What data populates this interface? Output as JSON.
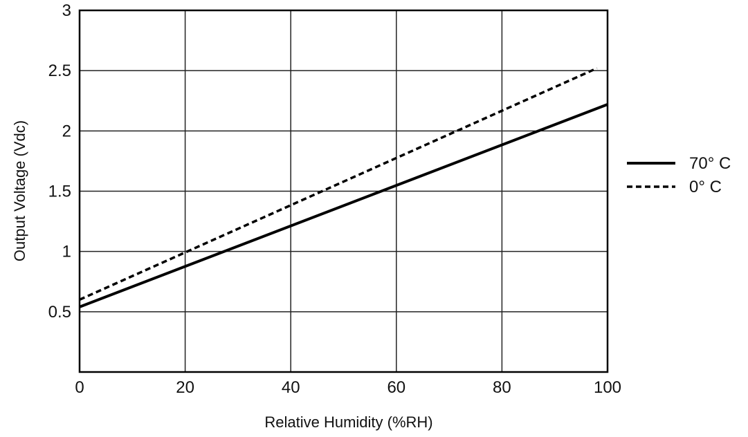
{
  "chart_data": {
    "type": "line",
    "title": "",
    "xlabel": "Relative Humidity (%RH)",
    "ylabel": "Output Voltage (Vdc)",
    "xlim": [
      0,
      100
    ],
    "ylim": [
      0,
      3
    ],
    "xticks": [
      0,
      20,
      40,
      60,
      80,
      100
    ],
    "xtick_labels": [
      "0",
      "20",
      "40",
      "60",
      "80",
      "100"
    ],
    "yticks": [
      0.5,
      1,
      1.5,
      2,
      2.5,
      3
    ],
    "ytick_labels": [
      "0.5",
      "1",
      "1.5",
      "2",
      "2.5",
      "3"
    ],
    "grid": true,
    "legend_position": "right",
    "series": [
      {
        "name": "70° C",
        "style": "solid",
        "color": "#000000",
        "x": [
          0,
          100
        ],
        "y": [
          0.54,
          2.22
        ]
      },
      {
        "name": "0° C",
        "style": "dashed",
        "color": "#000000",
        "x": [
          0,
          98
        ],
        "y": [
          0.6,
          2.52
        ]
      }
    ]
  }
}
